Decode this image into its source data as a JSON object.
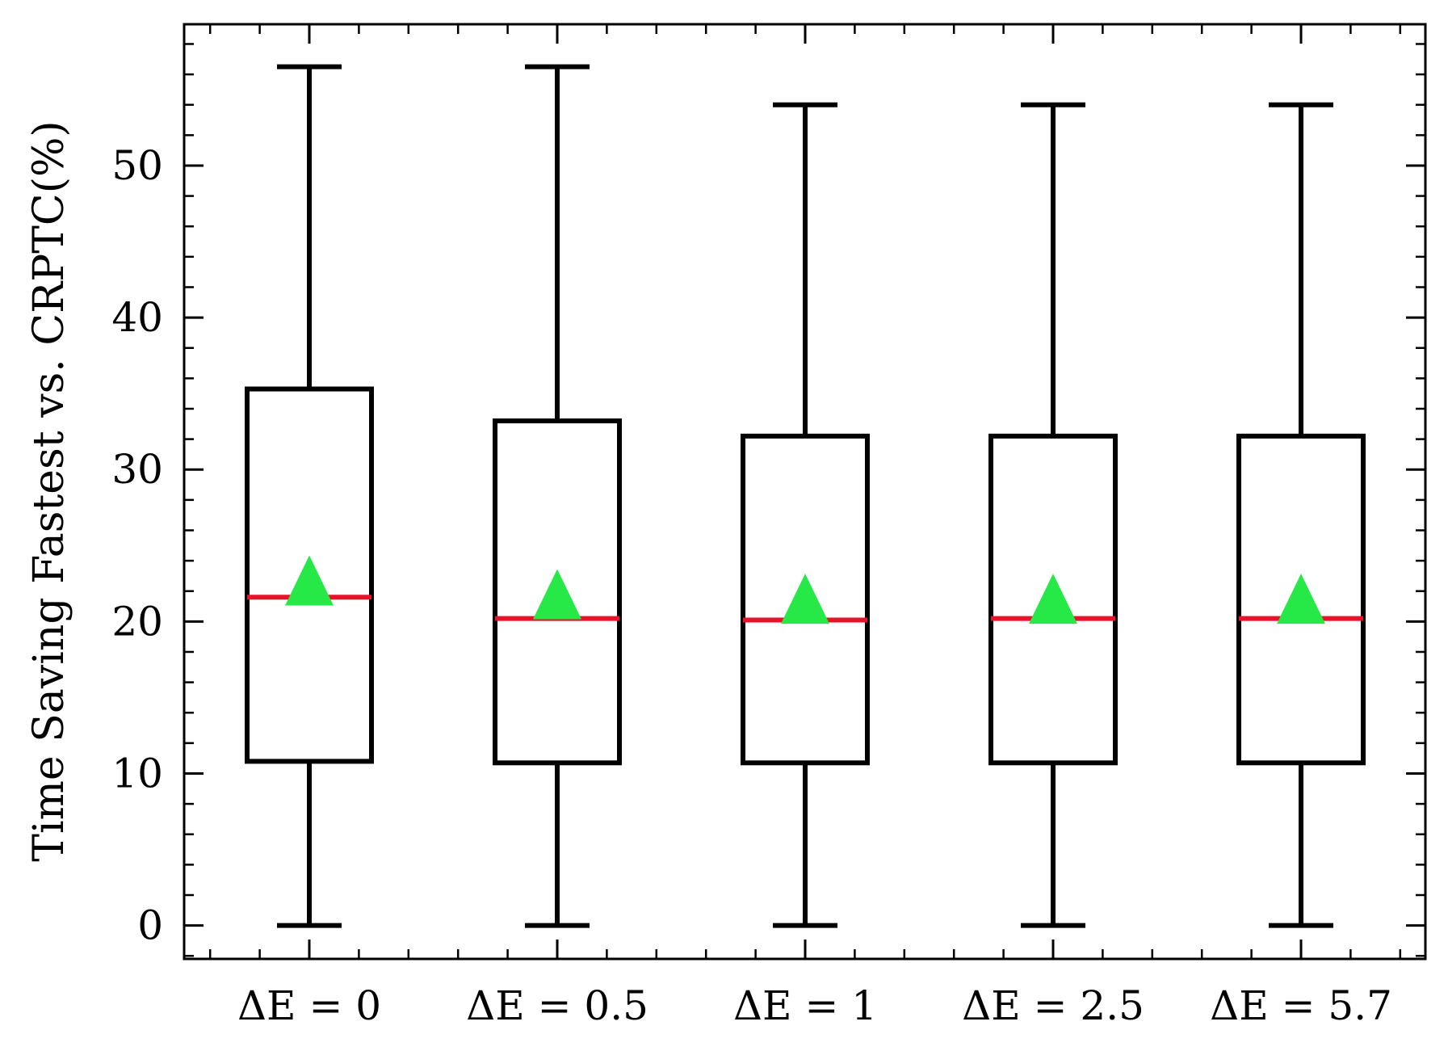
{
  "chart_data": {
    "type": "box",
    "ylabel": "Time Saving Fastest vs. CRPTC(%)",
    "xlabel": "",
    "ylim": [
      -2.2,
      59.3
    ],
    "yticks": [
      0,
      10,
      20,
      30,
      40,
      50
    ],
    "y_minor_step": 2,
    "grid": false,
    "categories": [
      "ΔE = 0",
      "ΔE = 0.5",
      "ΔE = 1",
      "ΔE = 2.5",
      "ΔE = 5.7"
    ],
    "boxes": [
      {
        "whisker_low": 0,
        "q1": 10.8,
        "median": 21.6,
        "mean": 22.7,
        "q3": 35.3,
        "whisker_high": 56.5
      },
      {
        "whisker_low": 0,
        "q1": 10.7,
        "median": 20.2,
        "mean": 21.8,
        "q3": 33.2,
        "whisker_high": 56.5
      },
      {
        "whisker_low": 0,
        "q1": 10.7,
        "median": 20.1,
        "mean": 21.5,
        "q3": 32.2,
        "whisker_high": 54.0
      },
      {
        "whisker_low": 0,
        "q1": 10.7,
        "median": 20.2,
        "mean": 21.5,
        "q3": 32.2,
        "whisker_high": 54.0
      },
      {
        "whisker_low": 0,
        "q1": 10.7,
        "median": 20.2,
        "mean": 21.5,
        "q3": 32.2,
        "whisker_high": 54.0
      }
    ],
    "colors": {
      "box": "#000000",
      "median": "#e8132b",
      "mean_marker": "#26e846"
    },
    "mean_marker": "triangle-up"
  }
}
